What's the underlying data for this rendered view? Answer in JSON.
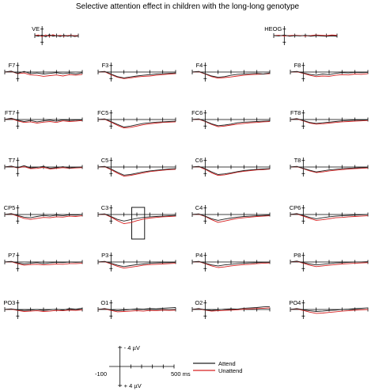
{
  "title": "Selective attention effect in children with the long-long genotype",
  "colors": {
    "attend": "#222222",
    "unattend": "#d62020",
    "axis": "#000000"
  },
  "chart_data": {
    "type": "line",
    "title": "Selective attention effect in children with the long-long genotype",
    "series": [
      {
        "name": "Attend"
      },
      {
        "name": "Unattend"
      }
    ],
    "x_unit": "ms",
    "xlim": [
      -100,
      500
    ],
    "y_unit": "µV",
    "ylim": [
      4,
      -4
    ],
    "negative_up": true,
    "channels": [
      {
        "name": "VE",
        "attend": [
          0,
          0.2,
          -0.2,
          0.4,
          -0.3,
          0.2,
          0,
          0.3,
          -0.1,
          0.2,
          0,
          0.3,
          0.1
        ],
        "unattend": [
          0,
          -0.2,
          0.3,
          -0.2,
          0.2,
          -0.3,
          0.1,
          -0.1,
          0.2,
          0,
          -0.1,
          0.1,
          0
        ]
      },
      {
        "name": "HEOG",
        "attend": [
          0,
          0.1,
          -0.2,
          0.2,
          0,
          0.1,
          -0.1,
          0.2,
          0,
          0.1,
          0.2,
          0.1,
          0.2
        ],
        "unattend": [
          0,
          -0.1,
          0.1,
          0,
          -0.1,
          0,
          0.1,
          0,
          -0.2,
          -0.1,
          0,
          -0.2,
          -0.1
        ]
      },
      {
        "name": "F7",
        "attend": [
          0,
          -0.3,
          0.4,
          -0.2,
          0.5,
          0.3,
          0.6,
          0.4,
          0.2,
          0.5,
          0.3,
          0.6,
          0.2
        ],
        "unattend": [
          0,
          -0.2,
          0.5,
          0.3,
          0.9,
          1.0,
          1.3,
          1.1,
          0.9,
          1.2,
          0.8,
          1.0,
          0.7
        ]
      },
      {
        "name": "F3",
        "attend": [
          0,
          -0.2,
          0.6,
          1.4,
          1.8,
          1.5,
          1.2,
          1.0,
          0.8,
          0.6,
          0.5,
          0.4,
          0.3
        ],
        "unattend": [
          0,
          -0.1,
          0.8,
          1.6,
          2.0,
          1.8,
          1.5,
          1.3,
          1.2,
          1.0,
          0.8,
          0.6,
          0.5
        ]
      },
      {
        "name": "F4",
        "attend": [
          0,
          -0.2,
          0.5,
          1.2,
          1.6,
          1.4,
          1.0,
          0.7,
          0.6,
          0.5,
          0.4,
          0.6,
          0.3
        ],
        "unattend": [
          0,
          -0.1,
          0.6,
          1.4,
          1.9,
          1.7,
          1.5,
          1.2,
          1.0,
          0.8,
          0.7,
          0.6,
          0.5
        ]
      },
      {
        "name": "F8",
        "attend": [
          0,
          -0.2,
          0.3,
          0.7,
          1.0,
          0.6,
          0.8,
          0.4,
          0.2,
          0.3,
          0.1,
          0.2,
          0.1
        ],
        "unattend": [
          0,
          -0.1,
          0.4,
          1.0,
          1.4,
          1.2,
          1.3,
          1.0,
          0.8,
          0.9,
          0.6,
          0.7,
          0.5
        ]
      },
      {
        "name": "FT7",
        "attend": [
          0,
          -0.4,
          0.2,
          0.6,
          0.3,
          0.7,
          0.4,
          0.2,
          0.5,
          0.1,
          0.3,
          0.2,
          0.1
        ],
        "unattend": [
          0,
          -0.3,
          0.4,
          0.9,
          0.7,
          1.1,
          0.8,
          0.6,
          0.9,
          0.4,
          0.6,
          0.5,
          0.3
        ]
      },
      {
        "name": "FC5",
        "attend": [
          0,
          -0.2,
          0.6,
          1.5,
          2.3,
          2.0,
          1.6,
          1.2,
          1.0,
          0.8,
          0.7,
          0.6,
          0.5
        ],
        "unattend": [
          0,
          -0.1,
          0.8,
          1.8,
          2.6,
          2.4,
          2.0,
          1.6,
          1.3,
          1.1,
          0.9,
          0.8,
          0.7
        ]
      },
      {
        "name": "FC6",
        "attend": [
          0,
          -0.2,
          0.5,
          1.3,
          1.9,
          1.7,
          1.4,
          1.0,
          0.8,
          0.7,
          0.6,
          0.5,
          0.4
        ],
        "unattend": [
          0,
          -0.1,
          0.6,
          1.5,
          2.2,
          2.0,
          1.7,
          1.4,
          1.2,
          1.0,
          0.9,
          0.7,
          0.6
        ]
      },
      {
        "name": "FT8",
        "attend": [
          0,
          -0.3,
          0.3,
          0.9,
          1.2,
          1.0,
          0.8,
          0.6,
          0.4,
          0.3,
          0.2,
          0.2,
          0.1
        ],
        "unattend": [
          0,
          -0.2,
          0.4,
          1.1,
          1.4,
          1.3,
          1.1,
          0.9,
          0.7,
          0.6,
          0.5,
          0.4,
          0.3
        ]
      },
      {
        "name": "T7",
        "attend": [
          0,
          -0.3,
          0.2,
          -0.4,
          0.3,
          0.1,
          -0.2,
          0.4,
          0.2,
          -0.1,
          0.3,
          0.1,
          0
        ],
        "unattend": [
          0,
          -0.2,
          0.3,
          -0.1,
          0.5,
          0.4,
          0.1,
          0.6,
          0.4,
          0.2,
          0.4,
          0.3,
          0.2
        ]
      },
      {
        "name": "C5",
        "attend": [
          0,
          -0.2,
          0.6,
          1.6,
          2.5,
          2.3,
          1.9,
          1.5,
          1.2,
          1.0,
          0.8,
          0.6,
          0.5
        ],
        "unattend": [
          0,
          -0.1,
          0.8,
          1.9,
          2.8,
          2.6,
          2.2,
          1.8,
          1.4,
          1.2,
          1.0,
          0.8,
          0.7
        ]
      },
      {
        "name": "C6",
        "attend": [
          0,
          -0.2,
          0.5,
          1.5,
          2.3,
          2.1,
          1.8,
          1.4,
          1.1,
          0.9,
          0.7,
          0.6,
          0.5
        ],
        "unattend": [
          0,
          -0.1,
          0.7,
          1.8,
          2.6,
          2.4,
          2.0,
          1.6,
          1.3,
          1.1,
          0.9,
          0.8,
          0.6
        ]
      },
      {
        "name": "T8",
        "attend": [
          0,
          -0.2,
          0.4,
          1.0,
          1.5,
          1.2,
          0.9,
          0.7,
          0.5,
          0.4,
          0.3,
          0.2,
          0.1
        ],
        "unattend": [
          0,
          -0.1,
          0.5,
          1.2,
          1.7,
          1.5,
          1.2,
          1.0,
          0.8,
          0.6,
          0.5,
          0.4,
          0.3
        ]
      },
      {
        "name": "CP5",
        "attend": [
          0,
          -0.3,
          0.3,
          0.8,
          1.0,
          0.6,
          0.3,
          0.5,
          0.2,
          0.4,
          0.1,
          0.2,
          0
        ],
        "unattend": [
          0,
          -0.2,
          0.5,
          1.2,
          1.5,
          1.2,
          0.9,
          1.0,
          0.7,
          0.8,
          0.5,
          0.6,
          0.4
        ]
      },
      {
        "name": "C3",
        "attend": [
          0,
          -0.2,
          0.6,
          1.5,
          2.0,
          1.6,
          1.2,
          0.9,
          0.7,
          0.6,
          0.5,
          0.4,
          0.3
        ],
        "unattend": [
          0,
          -0.1,
          0.8,
          1.9,
          2.8,
          2.5,
          1.9,
          1.4,
          1.1,
          0.9,
          0.7,
          0.6,
          0.5
        ]
      },
      {
        "name": "C4",
        "attend": [
          0,
          -0.2,
          0.5,
          1.3,
          1.8,
          1.4,
          1.1,
          0.8,
          0.6,
          0.5,
          0.4,
          0.3,
          0.2
        ],
        "unattend": [
          0,
          -0.1,
          0.6,
          1.6,
          2.4,
          2.0,
          1.6,
          1.2,
          1.0,
          0.8,
          0.6,
          0.5,
          0.4
        ]
      },
      {
        "name": "CP6",
        "attend": [
          0,
          -0.3,
          0.3,
          0.9,
          1.3,
          1.0,
          0.7,
          0.5,
          0.4,
          0.3,
          0.2,
          0.1,
          0
        ],
        "unattend": [
          0,
          -0.2,
          0.5,
          1.2,
          1.8,
          1.6,
          1.3,
          1.0,
          0.9,
          0.7,
          0.6,
          0.5,
          0.4
        ]
      },
      {
        "name": "P7",
        "attend": [
          0,
          -0.2,
          0.3,
          0.6,
          0.4,
          0.2,
          0.5,
          0.3,
          0.1,
          0.2,
          0,
          0.1,
          0
        ],
        "unattend": [
          0,
          -0.1,
          0.5,
          1.0,
          0.8,
          0.7,
          0.9,
          0.8,
          0.6,
          0.7,
          0.5,
          0.5,
          0.4
        ]
      },
      {
        "name": "P3",
        "attend": [
          0,
          -0.2,
          0.4,
          1.0,
          1.4,
          1.1,
          0.8,
          0.6,
          0.4,
          0.3,
          0.2,
          0.2,
          0.1
        ],
        "unattend": [
          0,
          -0.1,
          0.6,
          1.3,
          1.9,
          1.6,
          1.3,
          1.0,
          0.8,
          0.7,
          0.6,
          0.5,
          0.4
        ]
      },
      {
        "name": "P4",
        "attend": [
          0,
          -0.2,
          0.4,
          0.9,
          1.2,
          0.9,
          0.7,
          0.5,
          0.4,
          0.3,
          0.2,
          0.1,
          0.1
        ],
        "unattend": [
          0,
          -0.1,
          0.5,
          1.2,
          1.7,
          1.5,
          1.2,
          1.0,
          0.8,
          0.7,
          0.5,
          0.4,
          0.3
        ]
      },
      {
        "name": "P8",
        "attend": [
          0,
          -0.3,
          0.2,
          0.6,
          0.9,
          0.7,
          0.5,
          0.3,
          0.2,
          0.1,
          0,
          0,
          -0.1
        ],
        "unattend": [
          0,
          -0.2,
          0.4,
          1.0,
          1.4,
          1.2,
          1.0,
          0.8,
          0.6,
          0.5,
          0.4,
          0.3,
          0.2
        ]
      },
      {
        "name": "PO3",
        "attend": [
          0,
          -0.2,
          0.1,
          0.3,
          0.2,
          0,
          0.3,
          0.1,
          -0.1,
          0.2,
          -0.3,
          -0.1,
          -0.4
        ],
        "unattend": [
          0,
          -0.1,
          0.3,
          0.6,
          0.5,
          0.4,
          0.6,
          0.5,
          0.3,
          0.4,
          0.2,
          0.3,
          0.1
        ]
      },
      {
        "name": "O1",
        "attend": [
          0,
          -0.3,
          0.1,
          0.4,
          0.2,
          0,
          -0.2,
          -0.1,
          -0.3,
          -0.2,
          -0.4,
          -0.5,
          -0.6
        ],
        "unattend": [
          0,
          -0.2,
          0.3,
          0.7,
          0.6,
          0.5,
          0.4,
          0.5,
          0.3,
          0.4,
          0.2,
          0.3,
          0.2
        ]
      },
      {
        "name": "O2",
        "attend": [
          0,
          -0.3,
          0.1,
          0.3,
          0.1,
          -0.1,
          -0.2,
          -0.1,
          -0.4,
          -0.5,
          -0.6,
          -0.8,
          -0.9
        ],
        "unattend": [
          0,
          -0.2,
          0.2,
          0.5,
          0.4,
          0.3,
          0.2,
          0.1,
          -0.1,
          -0.2,
          -0.3,
          -0.4,
          -0.5
        ]
      },
      {
        "name": "PO4",
        "attend": [
          0,
          -0.3,
          0.1,
          0.4,
          0.6,
          0.5,
          0.3,
          0.2,
          0,
          -0.1,
          -0.3,
          -0.4,
          -0.5
        ],
        "unattend": [
          0,
          -0.2,
          0.3,
          0.8,
          1.2,
          1.1,
          0.9,
          0.7,
          0.5,
          0.4,
          0.2,
          0.1,
          0
        ]
      }
    ],
    "highlight": {
      "channel": "C3",
      "x_range": [
        160,
        260
      ]
    },
    "scale_bar": {
      "x_min_label": "-100",
      "x_max_label": "500 ms",
      "y_top_label": "- 4 µV",
      "y_bottom_label": "+ 4 µV"
    }
  },
  "legend": [
    {
      "label": "Attend",
      "color": "#222222"
    },
    {
      "label": "Unattend",
      "color": "#d62020"
    }
  ]
}
